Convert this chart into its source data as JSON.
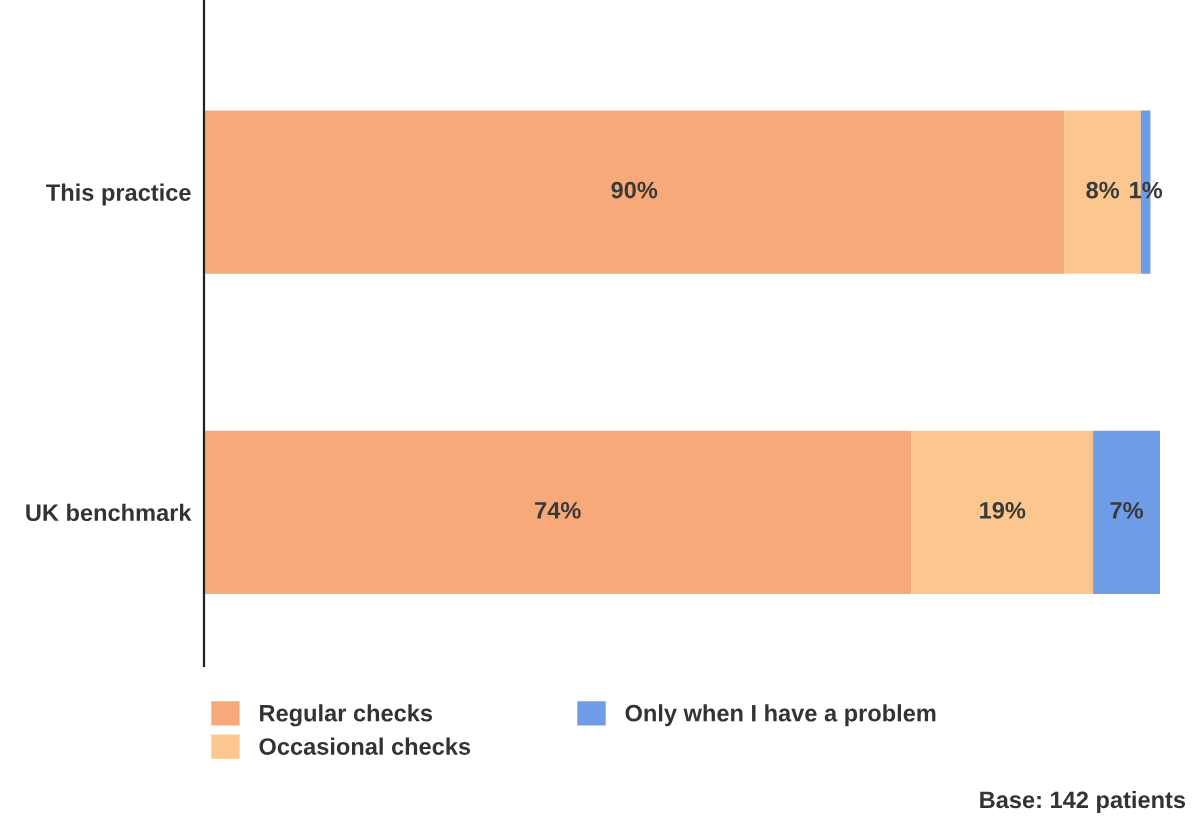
{
  "chart_data": {
    "type": "bar",
    "orientation": "horizontal",
    "stacked": true,
    "categories": [
      "This practice",
      "UK benchmark"
    ],
    "series": [
      {
        "name": "Regular checks",
        "color": "#f8a97a",
        "values": [
          90,
          74
        ],
        "value_labels": [
          "90%",
          "74%"
        ]
      },
      {
        "name": "Occasional checks",
        "color": "#fbc78e",
        "values": [
          8,
          19
        ],
        "value_labels": [
          "8%",
          "19%"
        ]
      },
      {
        "name": "Only when I have a problem",
        "color": "#6f9ce6",
        "values": [
          1,
          7
        ],
        "value_labels": [
          "1%",
          "7%"
        ]
      }
    ],
    "tick_labels": "y",
    "legend": "bottom",
    "annotations": [
      "Base: 142 patients"
    ]
  }
}
